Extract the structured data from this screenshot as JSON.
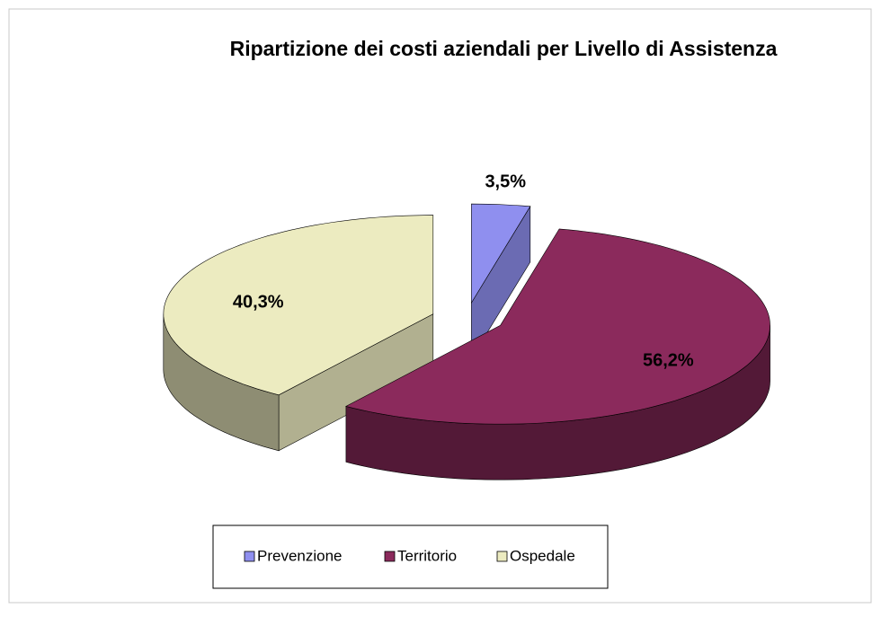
{
  "chart_data": {
    "type": "pie3d",
    "title": "Ripartizione dei costi aziendali per Livello di Assistenza",
    "categories": [
      "Prevenzione",
      "Territorio",
      "Ospedale"
    ],
    "values": [
      3.5,
      56.2,
      40.3
    ],
    "value_labels": [
      "3,5%",
      "56,2%",
      "40,3%"
    ],
    "colors": [
      "#8f8fef",
      "#8b2a5c",
      "#ecebc0"
    ],
    "legend": "bottom"
  }
}
